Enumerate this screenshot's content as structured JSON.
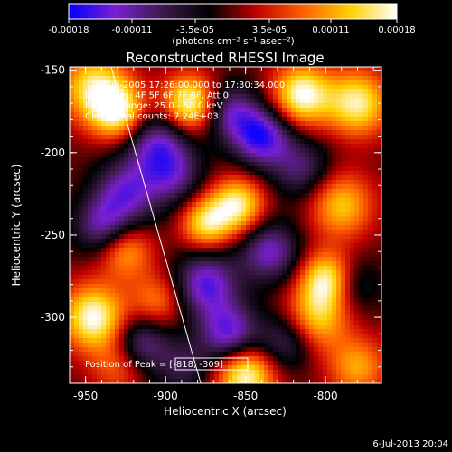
{
  "chart_data": {
    "type": "heatmap",
    "title": "Reconstructed RHESSI Image",
    "xlabel": "Heliocentric X (arcsec)",
    "ylabel": "Heliocentric Y (arcsec)",
    "colorbar": {
      "label": "(photons cm⁻² s⁻¹ asec⁻²)",
      "range": [
        -0.00018,
        0.00018
      ],
      "ticks": [
        "-0.00018",
        "-0.00011",
        "-3.5e-05",
        "3.5e-05",
        "0.00011",
        "0.00018"
      ],
      "colormap": [
        "#0000ff",
        "#7a1fd0",
        "#3c1a4a",
        "#000000",
        "#c00000",
        "#ff6000",
        "#ffd000",
        "#ffffff"
      ]
    },
    "xlim": [
      -960,
      -765
    ],
    "ylim": [
      -340,
      -148
    ],
    "xticks": [
      "-950",
      "-900",
      "-850",
      "-800"
    ],
    "yticks": [
      "-150",
      "-200",
      "-250",
      "-300"
    ],
    "annotations": [
      "1-Aug-2005 17:26:00.000 to 17:30:34.000",
      "Detectors: 4F 5F 6F 7F 8F, Att 0",
      "Energy Range: 25.0 - 50.0 keV",
      "Clean    Total counts: 7.24E+03"
    ],
    "peak_label": "Position of Peak = [-818, -309]",
    "limb": [
      [
        -934,
        -148
      ],
      [
        -878,
        -340
      ]
    ],
    "blobs": [
      [
        -945,
        -160,
        0.8,
        15
      ],
      [
        -930,
        -175,
        0.9,
        12
      ],
      [
        -885,
        -170,
        1.0,
        12
      ],
      [
        -815,
        -165,
        1.0,
        13
      ],
      [
        -780,
        -170,
        0.9,
        14
      ],
      [
        -855,
        -232,
        0.9,
        12
      ],
      [
        -875,
        -243,
        0.8,
        11
      ],
      [
        -790,
        -232,
        0.7,
        14
      ],
      [
        -925,
        -260,
        0.6,
        12
      ],
      [
        -945,
        -300,
        1.0,
        14
      ],
      [
        -905,
        -290,
        0.5,
        12
      ],
      [
        -798,
        -277,
        1.0,
        12
      ],
      [
        -805,
        -300,
        0.7,
        14
      ],
      [
        -850,
        -335,
        1.0,
        13
      ],
      [
        -780,
        -330,
        0.6,
        13
      ],
      [
        -930,
        -330,
        0.4,
        12
      ],
      [
        -905,
        -195,
        -0.7,
        14
      ],
      [
        -840,
        -190,
        -0.9,
        13
      ],
      [
        -895,
        -215,
        -0.5,
        13
      ],
      [
        -815,
        -210,
        -0.5,
        13
      ],
      [
        -925,
        -225,
        -0.7,
        14
      ],
      [
        -875,
        -280,
        -0.8,
        14
      ],
      [
        -835,
        -260,
        -0.7,
        13
      ],
      [
        -860,
        -310,
        -0.8,
        13
      ],
      [
        -915,
        -315,
        -0.6,
        12
      ],
      [
        -785,
        -280,
        -0.5,
        12
      ],
      [
        -940,
        -245,
        -0.6,
        12
      ],
      [
        -825,
        -315,
        -0.5,
        12
      ],
      [
        -890,
        -330,
        -0.4,
        12
      ],
      [
        -860,
        -175,
        -0.6,
        12
      ]
    ]
  },
  "footer": {
    "timestamp": "6-Jul-2013 20:04"
  }
}
